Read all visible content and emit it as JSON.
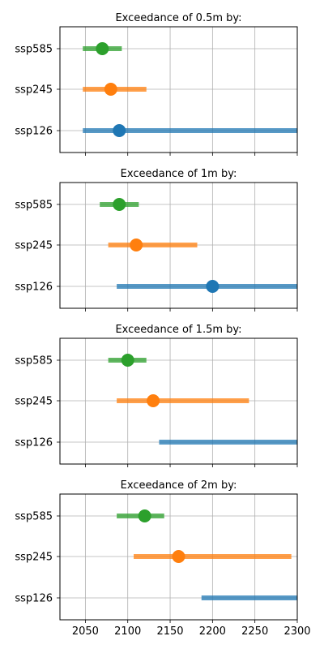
{
  "chart_data": [
    {
      "type": "range",
      "title": "Exceedance of 0.5m by:",
      "xlim": [
        2020,
        2300
      ],
      "x_ticks": [
        2050,
        2100,
        2150,
        2200,
        2250,
        2300
      ],
      "x_tick_labels_visible": false,
      "categories": [
        "ssp585",
        "ssp245",
        "ssp126"
      ],
      "series": [
        {
          "category": "ssp585",
          "color": "#2ca02c",
          "median": 2070,
          "low": 2047,
          "high": 2093
        },
        {
          "category": "ssp245",
          "color": "#ff7f0e",
          "median": 2080,
          "low": 2047,
          "high": 2122
        },
        {
          "category": "ssp126",
          "color": "#1f77b4",
          "median": 2090,
          "low": 2047,
          "high": 2300
        }
      ],
      "grid": true
    },
    {
      "type": "range",
      "title": "Exceedance of 1m by:",
      "xlim": [
        2020,
        2300
      ],
      "x_ticks": [
        2050,
        2100,
        2150,
        2200,
        2250,
        2300
      ],
      "x_tick_labels_visible": false,
      "categories": [
        "ssp585",
        "ssp245",
        "ssp126"
      ],
      "series": [
        {
          "category": "ssp585",
          "color": "#2ca02c",
          "median": 2090,
          "low": 2067,
          "high": 2113
        },
        {
          "category": "ssp245",
          "color": "#ff7f0e",
          "median": 2110,
          "low": 2077,
          "high": 2182
        },
        {
          "category": "ssp126",
          "color": "#1f77b4",
          "median": 2200,
          "low": 2087,
          "high": 2300
        }
      ],
      "grid": true
    },
    {
      "type": "range",
      "title": "Exceedance of 1.5m by:",
      "xlim": [
        2020,
        2300
      ],
      "x_ticks": [
        2050,
        2100,
        2150,
        2200,
        2250,
        2300
      ],
      "x_tick_labels_visible": false,
      "categories": [
        "ssp585",
        "ssp245",
        "ssp126"
      ],
      "series": [
        {
          "category": "ssp585",
          "color": "#2ca02c",
          "median": 2100,
          "low": 2077,
          "high": 2122
        },
        {
          "category": "ssp245",
          "color": "#ff7f0e",
          "median": 2130,
          "low": 2087,
          "high": 2243
        },
        {
          "category": "ssp126",
          "color": "#1f77b4",
          "median": null,
          "low": 2137,
          "high": 2300
        }
      ],
      "grid": true
    },
    {
      "type": "range",
      "title": "Exceedance of 2m by:",
      "xlim": [
        2020,
        2300
      ],
      "x_ticks": [
        2050,
        2100,
        2150,
        2200,
        2250,
        2300
      ],
      "x_tick_labels": [
        "2050",
        "2100",
        "2150",
        "2200",
        "2250",
        "2300"
      ],
      "x_tick_labels_visible": true,
      "categories": [
        "ssp585",
        "ssp245",
        "ssp126"
      ],
      "series": [
        {
          "category": "ssp585",
          "color": "#2ca02c",
          "median": 2120,
          "low": 2087,
          "high": 2143
        },
        {
          "category": "ssp245",
          "color": "#ff7f0e",
          "median": 2160,
          "low": 2107,
          "high": 2293
        },
        {
          "category": "ssp126",
          "color": "#1f77b4",
          "median": null,
          "low": 2187,
          "high": 2300
        }
      ],
      "grid": true
    }
  ]
}
